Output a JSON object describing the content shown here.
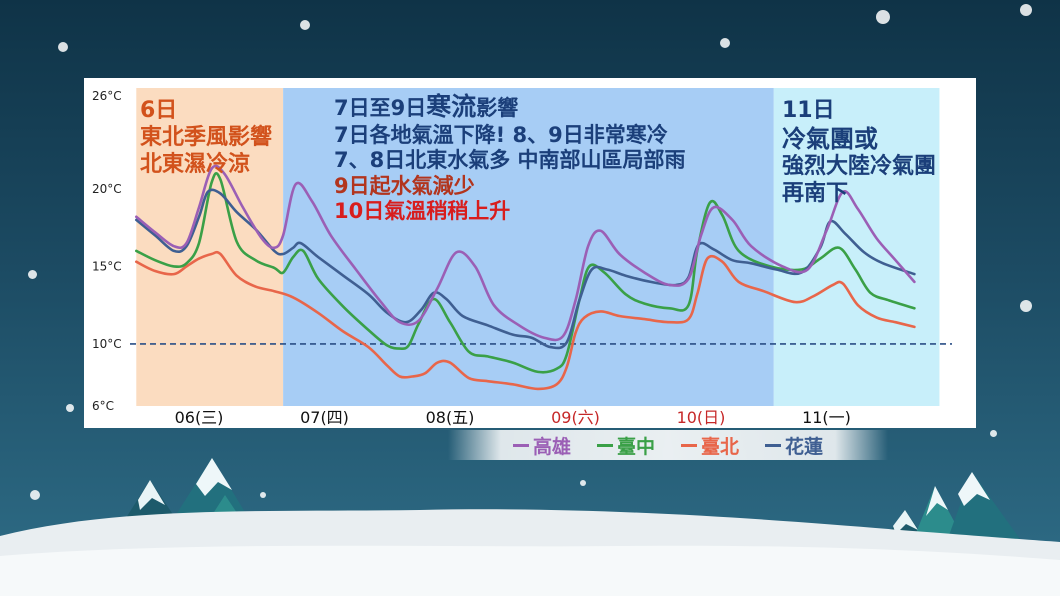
{
  "colors": {
    "kaohsiung": "#9b5fb5",
    "taichung": "#3aa047",
    "taipei": "#e8664a",
    "hualien": "#3f5f92",
    "zone_orange": "#fbdcc0",
    "zone_blue": "#a7cdf5",
    "zone_cyan": "#c8effa"
  },
  "annotations": {
    "zone6": {
      "line1": "6日",
      "line2": "東北季風影響",
      "line3": "北東濕冷涼"
    },
    "zone7": {
      "line1_a": "7日至9日",
      "line1_b": "寒流",
      "line1_c": "影響",
      "line2": "7日各地氣溫下降! 8、9日非常寒冷",
      "line3": "7、8日北東水氣多 中南部山區局部雨",
      "line4": "9日起水氣減少",
      "line5": "10日氣溫稍稍上升"
    },
    "zone11": {
      "line1": "11日",
      "line2": "冷氣團或",
      "line3": "強烈大陸冷氣團",
      "line4": "再南下"
    }
  },
  "legend": [
    {
      "key": "kaohsiung",
      "label": "高雄"
    },
    {
      "key": "taichung",
      "label": "臺中"
    },
    {
      "key": "taipei",
      "label": "臺北"
    },
    {
      "key": "hualien",
      "label": "花蓮"
    }
  ],
  "chart_data": {
    "type": "line",
    "y_ticks": [
      "26°C",
      "20°C",
      "15°C",
      "10°C",
      "6°C"
    ],
    "y_tick_values": [
      26,
      20,
      15,
      10,
      6
    ],
    "ylim": [
      6,
      26.5
    ],
    "reference_line": 10,
    "x_range": [
      5.0,
      11.55
    ],
    "days": [
      {
        "label": "06(三)",
        "x": 5.55,
        "color": "#111111"
      },
      {
        "label": "07(四)",
        "x": 6.55,
        "color": "#111111"
      },
      {
        "label": "08(五)",
        "x": 7.55,
        "color": "#111111"
      },
      {
        "label": "09(六)",
        "x": 8.55,
        "color": "#c62828"
      },
      {
        "label": "10(日)",
        "x": 9.55,
        "color": "#c62828"
      },
      {
        "label": "11(一)",
        "x": 10.55,
        "color": "#111111"
      }
    ],
    "zones": [
      {
        "from": 5.05,
        "to": 6.22,
        "color_key": "zone_orange"
      },
      {
        "from": 6.22,
        "to": 10.13,
        "color_key": "zone_blue"
      },
      {
        "from": 10.13,
        "to": 11.45,
        "color_key": "zone_cyan"
      }
    ],
    "series": [
      {
        "name": "高雄",
        "key": "kaohsiung",
        "points": [
          [
            5.05,
            18.2
          ],
          [
            5.2,
            17.2
          ],
          [
            5.35,
            16.3
          ],
          [
            5.45,
            16.5
          ],
          [
            5.55,
            18.8
          ],
          [
            5.65,
            21.3
          ],
          [
            5.75,
            21.0
          ],
          [
            5.9,
            18.8
          ],
          [
            6.05,
            16.8
          ],
          [
            6.15,
            16.2
          ],
          [
            6.22,
            17.0
          ],
          [
            6.32,
            20.3
          ],
          [
            6.45,
            19.2
          ],
          [
            6.6,
            17.0
          ],
          [
            6.8,
            14.8
          ],
          [
            7.0,
            12.7
          ],
          [
            7.15,
            11.4
          ],
          [
            7.3,
            11.5
          ],
          [
            7.45,
            13.6
          ],
          [
            7.6,
            15.9
          ],
          [
            7.75,
            15.0
          ],
          [
            7.9,
            12.5
          ],
          [
            8.1,
            11.2
          ],
          [
            8.3,
            10.4
          ],
          [
            8.45,
            10.5
          ],
          [
            8.55,
            12.8
          ],
          [
            8.65,
            16.3
          ],
          [
            8.75,
            17.3
          ],
          [
            8.9,
            15.8
          ],
          [
            9.1,
            14.6
          ],
          [
            9.3,
            13.8
          ],
          [
            9.45,
            14.2
          ],
          [
            9.55,
            17.0
          ],
          [
            9.65,
            18.8
          ],
          [
            9.8,
            18.0
          ],
          [
            9.95,
            16.3
          ],
          [
            10.2,
            15.0
          ],
          [
            10.4,
            14.8
          ],
          [
            10.55,
            17.3
          ],
          [
            10.68,
            19.8
          ],
          [
            10.8,
            18.7
          ],
          [
            10.95,
            16.8
          ],
          [
            11.1,
            15.4
          ],
          [
            11.25,
            14.0
          ]
        ]
      },
      {
        "name": "臺中",
        "key": "taichung",
        "points": [
          [
            5.05,
            16.0
          ],
          [
            5.2,
            15.4
          ],
          [
            5.35,
            15.0
          ],
          [
            5.45,
            15.2
          ],
          [
            5.55,
            16.5
          ],
          [
            5.65,
            20.4
          ],
          [
            5.72,
            20.6
          ],
          [
            5.85,
            16.6
          ],
          [
            6.0,
            15.4
          ],
          [
            6.15,
            14.9
          ],
          [
            6.22,
            14.6
          ],
          [
            6.3,
            15.6
          ],
          [
            6.38,
            16.0
          ],
          [
            6.5,
            14.2
          ],
          [
            6.7,
            12.4
          ],
          [
            6.9,
            10.9
          ],
          [
            7.05,
            9.9
          ],
          [
            7.15,
            9.7
          ],
          [
            7.22,
            9.9
          ],
          [
            7.3,
            11.3
          ],
          [
            7.42,
            12.9
          ],
          [
            7.55,
            11.4
          ],
          [
            7.7,
            9.5
          ],
          [
            7.85,
            9.2
          ],
          [
            8.05,
            8.8
          ],
          [
            8.25,
            8.2
          ],
          [
            8.4,
            8.4
          ],
          [
            8.48,
            9.3
          ],
          [
            8.58,
            12.8
          ],
          [
            8.66,
            15.0
          ],
          [
            8.78,
            14.6
          ],
          [
            8.95,
            13.2
          ],
          [
            9.1,
            12.6
          ],
          [
            9.3,
            12.3
          ],
          [
            9.45,
            12.5
          ],
          [
            9.52,
            16.0
          ],
          [
            9.62,
            19.1
          ],
          [
            9.72,
            18.3
          ],
          [
            9.85,
            16.0
          ],
          [
            10.1,
            15.0
          ],
          [
            10.35,
            14.8
          ],
          [
            10.5,
            15.5
          ],
          [
            10.65,
            16.2
          ],
          [
            10.78,
            14.8
          ],
          [
            10.9,
            13.3
          ],
          [
            11.05,
            12.8
          ],
          [
            11.25,
            12.3
          ]
        ]
      },
      {
        "name": "臺北",
        "key": "taipei",
        "points": [
          [
            5.05,
            15.3
          ],
          [
            5.2,
            14.7
          ],
          [
            5.35,
            14.5
          ],
          [
            5.45,
            15.0
          ],
          [
            5.55,
            15.5
          ],
          [
            5.65,
            15.8
          ],
          [
            5.72,
            15.8
          ],
          [
            5.85,
            14.4
          ],
          [
            6.0,
            13.7
          ],
          [
            6.15,
            13.4
          ],
          [
            6.3,
            13.0
          ],
          [
            6.5,
            12.0
          ],
          [
            6.7,
            10.8
          ],
          [
            6.9,
            9.8
          ],
          [
            7.05,
            8.6
          ],
          [
            7.15,
            7.9
          ],
          [
            7.25,
            7.9
          ],
          [
            7.35,
            8.1
          ],
          [
            7.45,
            8.8
          ],
          [
            7.55,
            8.8
          ],
          [
            7.7,
            7.8
          ],
          [
            7.85,
            7.6
          ],
          [
            8.05,
            7.4
          ],
          [
            8.25,
            7.1
          ],
          [
            8.4,
            7.4
          ],
          [
            8.48,
            8.5
          ],
          [
            8.55,
            10.7
          ],
          [
            8.62,
            11.7
          ],
          [
            8.75,
            12.1
          ],
          [
            8.9,
            11.8
          ],
          [
            9.1,
            11.6
          ],
          [
            9.3,
            11.4
          ],
          [
            9.45,
            11.6
          ],
          [
            9.52,
            13.2
          ],
          [
            9.6,
            15.5
          ],
          [
            9.72,
            15.3
          ],
          [
            9.85,
            14.0
          ],
          [
            10.05,
            13.4
          ],
          [
            10.3,
            12.7
          ],
          [
            10.45,
            13.1
          ],
          [
            10.6,
            13.8
          ],
          [
            10.68,
            13.9
          ],
          [
            10.8,
            12.5
          ],
          [
            10.95,
            11.7
          ],
          [
            11.1,
            11.4
          ],
          [
            11.25,
            11.1
          ]
        ]
      },
      {
        "name": "花蓮",
        "key": "hualien",
        "points": [
          [
            5.05,
            18.0
          ],
          [
            5.2,
            17.0
          ],
          [
            5.35,
            16.0
          ],
          [
            5.45,
            16.3
          ],
          [
            5.55,
            18.2
          ],
          [
            5.62,
            19.8
          ],
          [
            5.72,
            19.7
          ],
          [
            5.85,
            18.5
          ],
          [
            6.0,
            17.4
          ],
          [
            6.15,
            16.0
          ],
          [
            6.22,
            15.8
          ],
          [
            6.3,
            16.2
          ],
          [
            6.36,
            16.5
          ],
          [
            6.5,
            15.6
          ],
          [
            6.7,
            14.4
          ],
          [
            6.9,
            13.2
          ],
          [
            7.05,
            12.0
          ],
          [
            7.2,
            11.4
          ],
          [
            7.32,
            12.2
          ],
          [
            7.42,
            13.3
          ],
          [
            7.52,
            12.9
          ],
          [
            7.65,
            11.8
          ],
          [
            7.85,
            11.2
          ],
          [
            8.05,
            10.6
          ],
          [
            8.2,
            10.4
          ],
          [
            8.35,
            9.8
          ],
          [
            8.48,
            10.1
          ],
          [
            8.58,
            12.8
          ],
          [
            8.68,
            14.8
          ],
          [
            8.8,
            14.8
          ],
          [
            8.95,
            14.4
          ],
          [
            9.15,
            14.0
          ],
          [
            9.35,
            13.8
          ],
          [
            9.45,
            14.3
          ],
          [
            9.53,
            16.4
          ],
          [
            9.65,
            16.1
          ],
          [
            9.8,
            15.4
          ],
          [
            9.95,
            15.2
          ],
          [
            10.15,
            14.8
          ],
          [
            10.35,
            14.6
          ],
          [
            10.5,
            16.2
          ],
          [
            10.58,
            17.9
          ],
          [
            10.7,
            17.1
          ],
          [
            10.85,
            15.9
          ],
          [
            11.0,
            15.2
          ],
          [
            11.25,
            14.5
          ]
        ]
      }
    ]
  }
}
